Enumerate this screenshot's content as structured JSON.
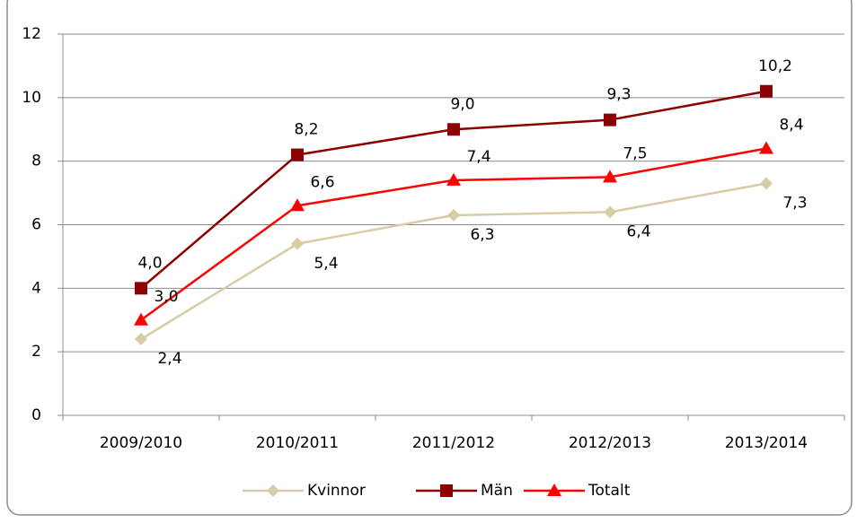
{
  "chart_data": {
    "type": "line",
    "categories": [
      "2009/2010",
      "2010/2011",
      "2011/2012",
      "2012/2013",
      "2013/2014"
    ],
    "series": [
      {
        "name": "Kvinnor",
        "color": "#d8cca6",
        "marker": "diamond",
        "values": [
          2.4,
          5.4,
          6.3,
          6.4,
          7.3
        ],
        "value_labels": [
          "2,4",
          "5,4",
          "6,3",
          "6,4",
          "7,3"
        ]
      },
      {
        "name": "Män",
        "color": "#8b0000",
        "marker": "square",
        "values": [
          4.0,
          8.2,
          9.0,
          9.3,
          10.2
        ],
        "value_labels": [
          "4,0",
          "8,2",
          "9,0",
          "9,3",
          "10,2"
        ]
      },
      {
        "name": "Totalt",
        "color": "#ff0000",
        "marker": "triangle",
        "values": [
          3.0,
          6.6,
          7.4,
          7.5,
          8.4
        ],
        "value_labels": [
          "3,0",
          "6,6",
          "7,4",
          "7,5",
          "8,4"
        ]
      }
    ],
    "ylim": [
      0,
      12
    ],
    "yticks": [
      0,
      2,
      4,
      6,
      8,
      10,
      12
    ],
    "grid": true,
    "legend": "bottom"
  }
}
